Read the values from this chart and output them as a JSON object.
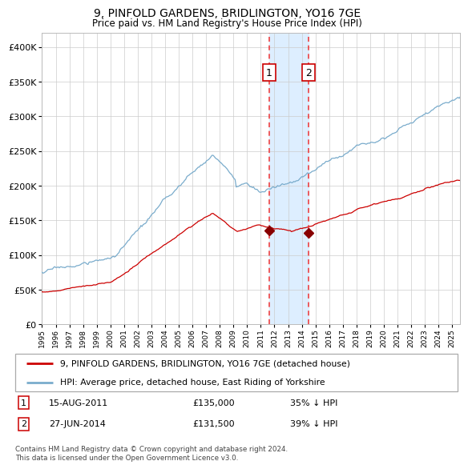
{
  "title": "9, PINFOLD GARDENS, BRIDLINGTON, YO16 7GE",
  "subtitle": "Price paid vs. HM Land Registry's House Price Index (HPI)",
  "legend_line1": "9, PINFOLD GARDENS, BRIDLINGTON, YO16 7GE (detached house)",
  "legend_line2": "HPI: Average price, detached house, East Riding of Yorkshire",
  "footer": "Contains HM Land Registry data © Crown copyright and database right 2024.\nThis data is licensed under the Open Government Licence v3.0.",
  "table": [
    [
      "1",
      "15-AUG-2011",
      "£135,000",
      "35% ↓ HPI"
    ],
    [
      "2",
      "27-JUN-2014",
      "£131,500",
      "39% ↓ HPI"
    ]
  ],
  "red_color": "#cc0000",
  "blue_color": "#7aaccc",
  "shade_color": "#ddeeff",
  "dashed_color": "#ee3333",
  "marker_color": "#880000",
  "ylim": [
    0,
    420000
  ],
  "yticks": [
    0,
    50000,
    100000,
    150000,
    200000,
    250000,
    300000,
    350000,
    400000
  ],
  "sale1_date": 2011.62,
  "sale1_value": 135000,
  "sale2_date": 2014.49,
  "sale2_value": 131500,
  "xmin": 1995.0,
  "xmax": 2025.6
}
